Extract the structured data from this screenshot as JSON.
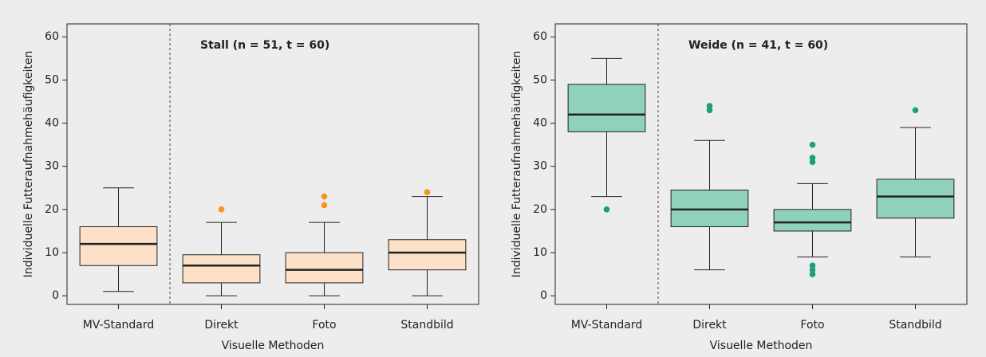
{
  "chart_data": [
    {
      "type": "box",
      "title": "Stall (n = 51, t = 60)",
      "y_label": "Individuelle Futteraufnahmehäufigkeiten",
      "x_label": "Visuelle Methoden",
      "categories": [
        "MV-Standard",
        "Direkt",
        "Foto",
        "Standbild"
      ],
      "boxes": [
        {
          "low": 1,
          "q1": 7,
          "median": 12,
          "q3": 16,
          "high": 25,
          "outliers": []
        },
        {
          "low": 0,
          "q1": 3,
          "median": 7,
          "q3": 9.5,
          "high": 17,
          "outliers": [
            20
          ]
        },
        {
          "low": 0,
          "q1": 3,
          "median": 6,
          "q3": 10,
          "high": 17,
          "outliers": [
            21,
            23
          ]
        },
        {
          "low": 0,
          "q1": 6,
          "median": 10,
          "q3": 13,
          "high": 23,
          "outliers": [
            24
          ]
        }
      ],
      "color": "#fde0c8",
      "outlier_color": "#f7941d",
      "ylim": [
        -2,
        63
      ],
      "yticks": [
        0,
        10,
        20,
        30,
        40,
        50,
        60
      ]
    },
    {
      "type": "box",
      "title": "Weide (n = 41, t = 60)",
      "y_label": "Individuelle Futteraufnahmehäufigkeiten",
      "x_label": "Visuelle Methoden",
      "categories": [
        "MV-Standard",
        "Direkt",
        "Foto",
        "Standbild"
      ],
      "boxes": [
        {
          "low": 23,
          "q1": 38,
          "median": 42,
          "q3": 49,
          "high": 55,
          "outliers": [
            20
          ]
        },
        {
          "low": 6,
          "q1": 16,
          "median": 20,
          "q3": 24.5,
          "high": 36,
          "outliers": [
            43,
            44
          ]
        },
        {
          "low": 9,
          "q1": 15,
          "median": 17,
          "q3": 20,
          "high": 26,
          "outliers": [
            5,
            6,
            7,
            31,
            32,
            35
          ]
        },
        {
          "low": 9,
          "q1": 18,
          "median": 23,
          "q3": 27,
          "high": 39,
          "outliers": [
            43
          ]
        }
      ],
      "color": "#8fd1b9",
      "outlier_color": "#1aa07e",
      "ylim": [
        -2,
        63
      ],
      "yticks": [
        0,
        10,
        20,
        30,
        40,
        50,
        60
      ]
    }
  ]
}
